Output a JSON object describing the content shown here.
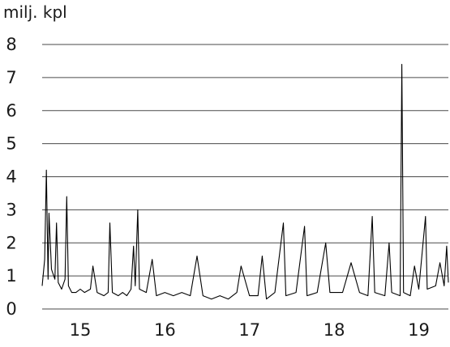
{
  "chart_data": {
    "type": "line",
    "title": "",
    "xlabel": "",
    "ylabel": "milj. kpl",
    "ylim": [
      0,
      8
    ],
    "yticks": [
      "0",
      "1",
      "2",
      "3",
      "4",
      "5",
      "6",
      "7",
      "8"
    ],
    "xlim": [
      14.55,
      19.35
    ],
    "xticks": [
      "15",
      "16",
      "17",
      "18",
      "19"
    ],
    "grid": "horizontal",
    "legend": "none",
    "line_color": "#000000",
    "series": [
      {
        "values": [
          [
            14.55,
            0.7
          ],
          [
            14.58,
            1.5
          ],
          [
            14.6,
            4.2
          ],
          [
            14.62,
            0.9
          ],
          [
            14.63,
            2.9
          ],
          [
            14.66,
            1.2
          ],
          [
            14.7,
            0.9
          ],
          [
            14.72,
            2.6
          ],
          [
            14.74,
            0.8
          ],
          [
            14.78,
            0.6
          ],
          [
            14.82,
            0.9
          ],
          [
            14.84,
            3.4
          ],
          [
            14.86,
            0.7
          ],
          [
            14.9,
            0.5
          ],
          [
            14.95,
            0.5
          ],
          [
            15.0,
            0.6
          ],
          [
            15.05,
            0.5
          ],
          [
            15.12,
            0.6
          ],
          [
            15.15,
            1.3
          ],
          [
            15.2,
            0.5
          ],
          [
            15.28,
            0.4
          ],
          [
            15.33,
            0.5
          ],
          [
            15.35,
            2.6
          ],
          [
            15.38,
            0.5
          ],
          [
            15.45,
            0.4
          ],
          [
            15.5,
            0.5
          ],
          [
            15.55,
            0.4
          ],
          [
            15.6,
            0.6
          ],
          [
            15.63,
            1.9
          ],
          [
            15.65,
            0.7
          ],
          [
            15.68,
            3.0
          ],
          [
            15.7,
            0.6
          ],
          [
            15.78,
            0.5
          ],
          [
            15.85,
            1.5
          ],
          [
            15.9,
            0.4
          ],
          [
            16.0,
            0.5
          ],
          [
            16.1,
            0.4
          ],
          [
            16.2,
            0.5
          ],
          [
            16.3,
            0.4
          ],
          [
            16.38,
            1.6
          ],
          [
            16.45,
            0.4
          ],
          [
            16.55,
            0.3
          ],
          [
            16.65,
            0.4
          ],
          [
            16.75,
            0.3
          ],
          [
            16.85,
            0.5
          ],
          [
            16.9,
            1.3
          ],
          [
            17.0,
            0.4
          ],
          [
            17.1,
            0.4
          ],
          [
            17.15,
            1.6
          ],
          [
            17.2,
            0.3
          ],
          [
            17.3,
            0.5
          ],
          [
            17.4,
            2.6
          ],
          [
            17.43,
            0.4
          ],
          [
            17.55,
            0.5
          ],
          [
            17.65,
            2.5
          ],
          [
            17.68,
            0.4
          ],
          [
            17.8,
            0.5
          ],
          [
            17.9,
            2.0
          ],
          [
            17.95,
            0.5
          ],
          [
            18.1,
            0.5
          ],
          [
            18.2,
            1.4
          ],
          [
            18.3,
            0.5
          ],
          [
            18.4,
            0.4
          ],
          [
            18.45,
            2.8
          ],
          [
            18.48,
            0.5
          ],
          [
            18.6,
            0.4
          ],
          [
            18.65,
            2.0
          ],
          [
            18.68,
            0.5
          ],
          [
            18.78,
            0.4
          ],
          [
            18.8,
            7.4
          ],
          [
            18.82,
            0.5
          ],
          [
            18.9,
            0.4
          ],
          [
            18.95,
            1.3
          ],
          [
            19.0,
            0.6
          ],
          [
            19.08,
            2.8
          ],
          [
            19.1,
            0.6
          ],
          [
            19.2,
            0.7
          ],
          [
            19.25,
            1.4
          ],
          [
            19.3,
            0.7
          ],
          [
            19.33,
            1.9
          ],
          [
            19.35,
            0.8
          ]
        ]
      }
    ]
  }
}
